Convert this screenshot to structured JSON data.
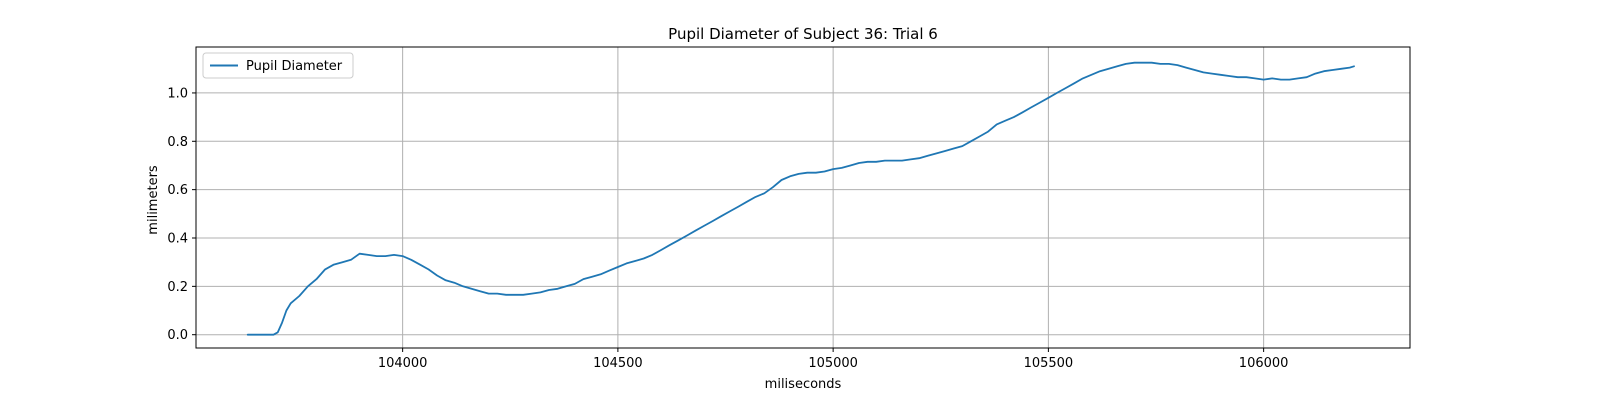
{
  "chart_data": {
    "type": "line",
    "title": "Pupil Diameter of Subject 36: Trial 6",
    "xlabel": "miliseconds",
    "ylabel": "milimeters",
    "xlim": [
      103520,
      106340
    ],
    "ylim": [
      -0.055,
      1.19
    ],
    "x_ticks": [
      104000,
      104500,
      105000,
      105500,
      106000
    ],
    "x_tick_labels": [
      "104000",
      "104500",
      "105000",
      "105500",
      "106000"
    ],
    "y_ticks": [
      0.0,
      0.2,
      0.4,
      0.6,
      0.8,
      1.0
    ],
    "y_tick_labels": [
      "0.0",
      "0.2",
      "0.4",
      "0.6",
      "0.8",
      "1.0"
    ],
    "grid": true,
    "legend_position": "top-left",
    "colors": {
      "series": "#1f77b4",
      "grid": "#b0b0b0"
    },
    "series": [
      {
        "name": "Pupil Diameter",
        "x": [
          103640,
          103660,
          103680,
          103700,
          103710,
          103720,
          103730,
          103740,
          103760,
          103780,
          103800,
          103820,
          103840,
          103860,
          103880,
          103900,
          103920,
          103940,
          103960,
          103980,
          104000,
          104020,
          104040,
          104060,
          104080,
          104100,
          104120,
          104140,
          104160,
          104180,
          104200,
          104220,
          104240,
          104260,
          104280,
          104300,
          104320,
          104340,
          104360,
          104380,
          104400,
          104420,
          104440,
          104460,
          104480,
          104500,
          104520,
          104540,
          104560,
          104580,
          104600,
          104620,
          104640,
          104660,
          104680,
          104700,
          104720,
          104740,
          104760,
          104780,
          104800,
          104820,
          104840,
          104860,
          104880,
          104900,
          104920,
          104940,
          104960,
          104980,
          105000,
          105020,
          105040,
          105060,
          105080,
          105100,
          105120,
          105140,
          105160,
          105180,
          105200,
          105220,
          105240,
          105260,
          105280,
          105300,
          105320,
          105340,
          105360,
          105380,
          105400,
          105420,
          105440,
          105460,
          105480,
          105500,
          105520,
          105540,
          105560,
          105580,
          105600,
          105620,
          105640,
          105660,
          105680,
          105700,
          105720,
          105740,
          105760,
          105780,
          105800,
          105820,
          105840,
          105860,
          105880,
          105900,
          105920,
          105940,
          105960,
          105980,
          106000,
          106020,
          106040,
          106060,
          106080,
          106100,
          106120,
          106140,
          106160,
          106180,
          106200,
          106210
        ],
        "values": [
          0.0,
          0.0,
          0.0,
          0.0,
          0.01,
          0.05,
          0.1,
          0.13,
          0.16,
          0.2,
          0.23,
          0.27,
          0.29,
          0.3,
          0.31,
          0.335,
          0.33,
          0.325,
          0.325,
          0.33,
          0.325,
          0.31,
          0.29,
          0.27,
          0.245,
          0.225,
          0.215,
          0.2,
          0.19,
          0.18,
          0.17,
          0.17,
          0.165,
          0.165,
          0.165,
          0.17,
          0.175,
          0.185,
          0.19,
          0.2,
          0.21,
          0.23,
          0.24,
          0.25,
          0.265,
          0.28,
          0.295,
          0.305,
          0.315,
          0.33,
          0.35,
          0.37,
          0.39,
          0.41,
          0.43,
          0.45,
          0.47,
          0.49,
          0.51,
          0.53,
          0.55,
          0.57,
          0.585,
          0.61,
          0.64,
          0.655,
          0.665,
          0.67,
          0.67,
          0.675,
          0.685,
          0.69,
          0.7,
          0.71,
          0.715,
          0.715,
          0.72,
          0.72,
          0.72,
          0.725,
          0.73,
          0.74,
          0.75,
          0.76,
          0.77,
          0.78,
          0.8,
          0.82,
          0.84,
          0.87,
          0.885,
          0.9,
          0.92,
          0.94,
          0.96,
          0.98,
          1.0,
          1.02,
          1.04,
          1.06,
          1.075,
          1.09,
          1.1,
          1.11,
          1.12,
          1.125,
          1.125,
          1.125,
          1.12,
          1.12,
          1.115,
          1.105,
          1.095,
          1.085,
          1.08,
          1.075,
          1.07,
          1.065,
          1.065,
          1.06,
          1.055,
          1.06,
          1.055,
          1.055,
          1.06,
          1.065,
          1.08,
          1.09,
          1.095,
          1.1,
          1.105,
          1.11
        ]
      }
    ]
  }
}
